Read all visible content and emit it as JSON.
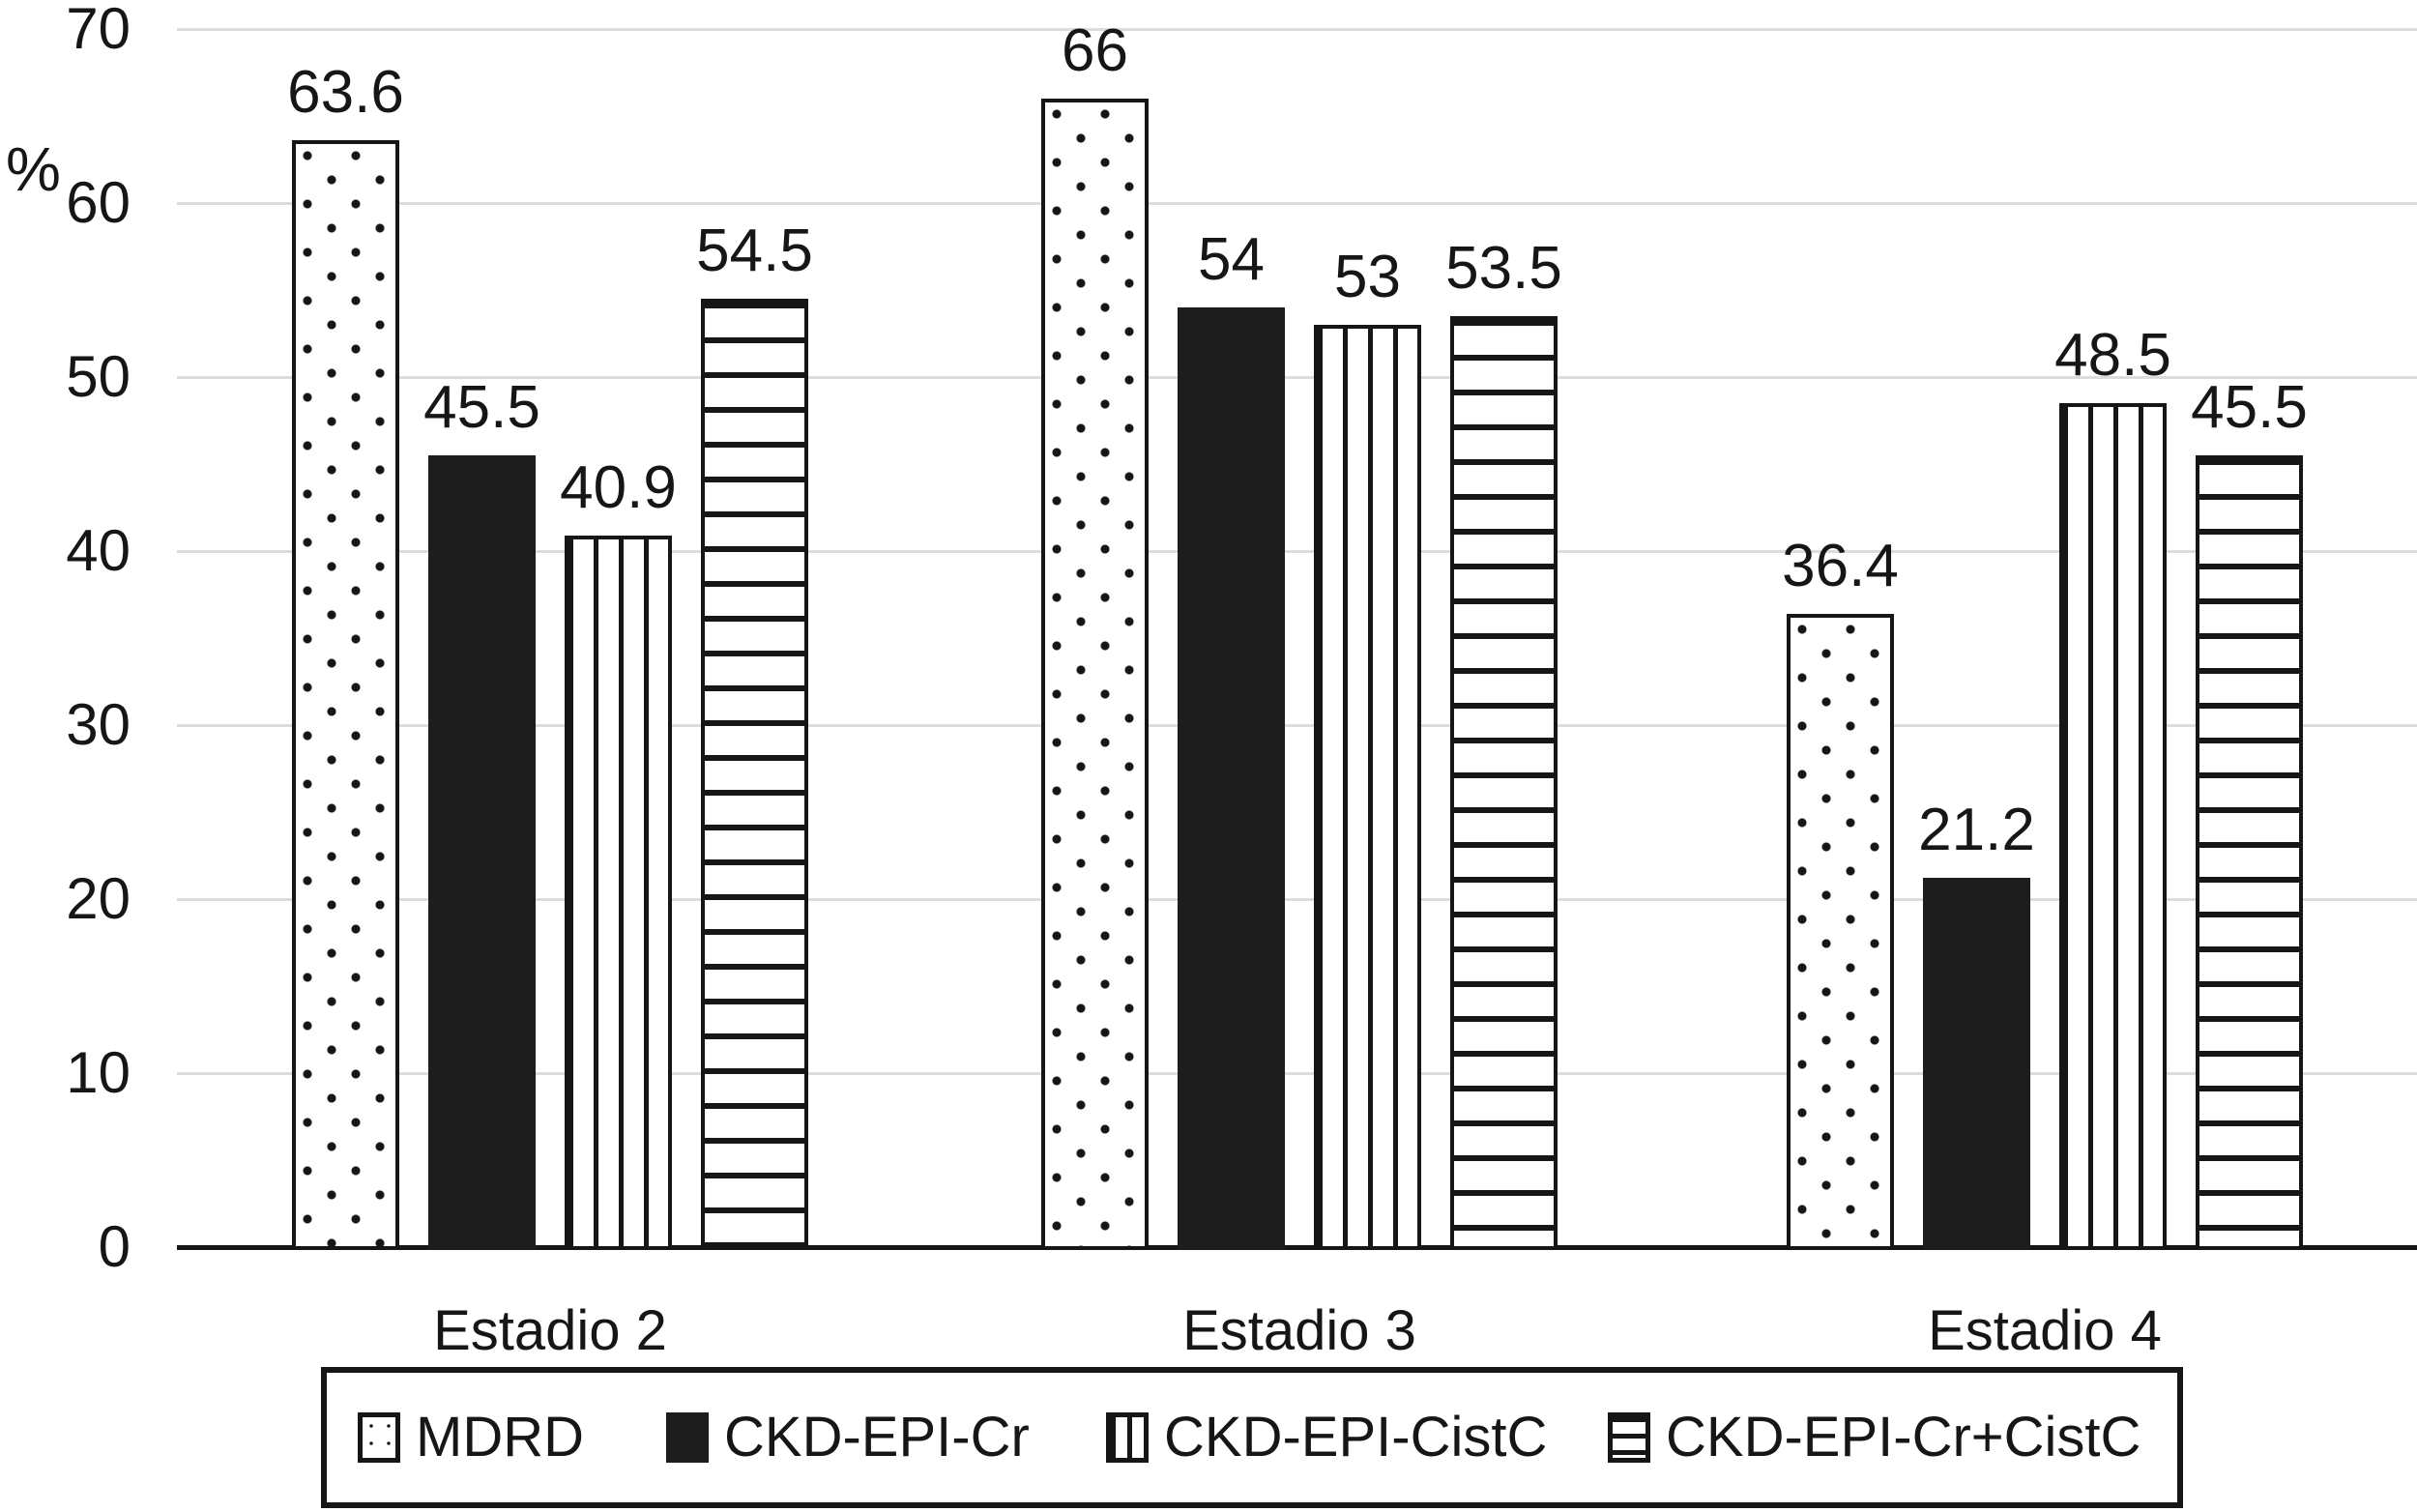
{
  "chart_data": {
    "type": "bar",
    "title": "",
    "ylabel": "%",
    "xlabel": "",
    "categories": [
      "Estadio 2",
      "Estadio 3",
      "Estadio 4"
    ],
    "series": [
      {
        "name": "MDRD",
        "pattern": "dots",
        "values": [
          63.6,
          66,
          36.4
        ]
      },
      {
        "name": "CKD-EPI-Cr",
        "pattern": "solid",
        "values": [
          45.5,
          54,
          21.2
        ]
      },
      {
        "name": "CKD-EPI-CistC",
        "pattern": "vstripe",
        "values": [
          40.9,
          53,
          48.5
        ]
      },
      {
        "name": "CKD-EPI-Cr+CistC",
        "pattern": "hstripe",
        "values": [
          54.5,
          53.5,
          45.5
        ]
      }
    ],
    "data_labels": [
      [
        "63.6",
        "45.5",
        "40.9",
        "54.5"
      ],
      [
        "66",
        "54",
        "53",
        "53.5"
      ],
      [
        "36.4",
        "21.2",
        "48.5",
        "45.5"
      ]
    ],
    "ylim": [
      0,
      70
    ],
    "yticks": [
      0,
      10,
      20,
      30,
      40,
      50,
      60,
      70
    ],
    "grid": "horizontal-light-gray",
    "legend_position": "bottom-boxed",
    "colors": {
      "bar_fill_black": "#1d1d1d",
      "bar_outline": "#161616",
      "gridline": "#dcdcdc",
      "background": "#ffffff",
      "text": "#161616"
    }
  }
}
